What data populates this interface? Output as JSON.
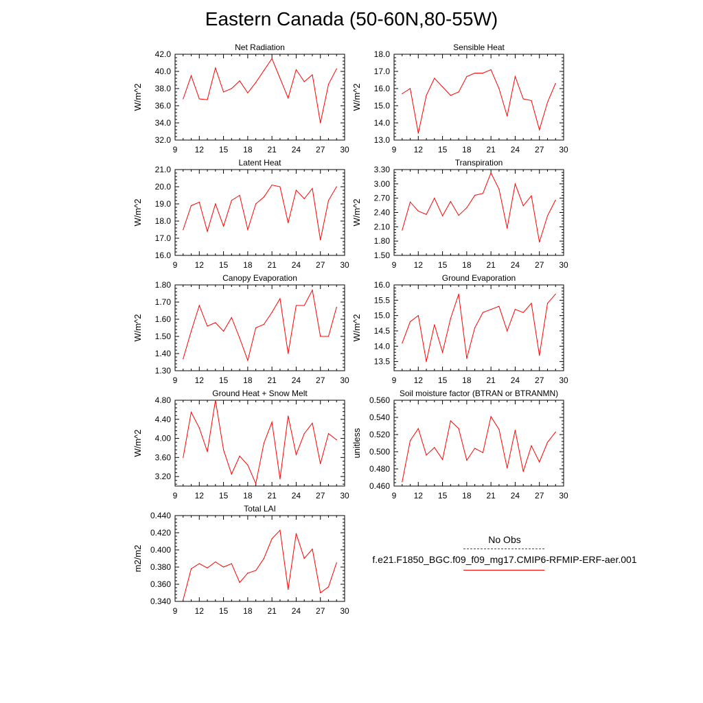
{
  "title": "Eastern Canada (50-60N,80-55W)",
  "legend": {
    "obs_label": "No Obs",
    "obs_color": "#3a3ab8",
    "run_label": "f.e21.F1850_BGC.f09_f09_mg17.CMIP6-RFMIP-ERF-aer.001",
    "run_color": "#ff0000"
  },
  "chart_data": [
    {
      "type": "line",
      "title": "Net Radiation",
      "ylabel": "W/m^2",
      "xlim": [
        9,
        30
      ],
      "xticks": [
        "9",
        "12",
        "15",
        "18",
        "21",
        "24",
        "27",
        "30"
      ],
      "ylim": [
        32.0,
        42.0
      ],
      "yticks": [
        "32.0",
        "34.0",
        "36.0",
        "38.0",
        "40.0",
        "42.0"
      ],
      "series": [
        {
          "x": [
            10,
            11,
            12,
            13,
            14,
            15,
            16,
            17,
            18,
            19,
            20,
            21,
            22,
            23,
            24,
            25,
            26,
            27,
            28,
            29
          ],
          "values": [
            36.8,
            39.5,
            36.8,
            36.7,
            40.4,
            37.6,
            38.0,
            38.9,
            37.5,
            38.7,
            40.1,
            41.5,
            39.2,
            36.9,
            40.2,
            38.8,
            39.6,
            34.0,
            38.5,
            40.3
          ]
        }
      ]
    },
    {
      "type": "line",
      "title": "Sensible Heat",
      "ylabel": "W/m^2",
      "xlim": [
        9,
        30
      ],
      "xticks": [
        "9",
        "12",
        "15",
        "18",
        "21",
        "24",
        "27",
        "30"
      ],
      "ylim": [
        13.0,
        18.0
      ],
      "yticks": [
        "13.0",
        "14.0",
        "15.0",
        "16.0",
        "17.0",
        "18.0"
      ],
      "series": [
        {
          "x": [
            10,
            11,
            12,
            13,
            14,
            15,
            16,
            17,
            18,
            19,
            20,
            21,
            22,
            23,
            24,
            25,
            26,
            27,
            28,
            29
          ],
          "values": [
            15.7,
            16.0,
            13.4,
            15.6,
            16.6,
            16.1,
            15.6,
            15.8,
            16.7,
            16.9,
            16.9,
            17.1,
            16.0,
            14.4,
            16.7,
            15.4,
            15.3,
            13.6,
            15.2,
            16.3
          ]
        }
      ]
    },
    {
      "type": "line",
      "title": "Latent Heat",
      "ylabel": "W/m^2",
      "xlim": [
        9,
        30
      ],
      "xticks": [
        "9",
        "12",
        "15",
        "18",
        "21",
        "24",
        "27",
        "30"
      ],
      "ylim": [
        16.0,
        21.0
      ],
      "yticks": [
        "16.0",
        "17.0",
        "18.0",
        "19.0",
        "20.0",
        "21.0"
      ],
      "series": [
        {
          "x": [
            10,
            11,
            12,
            13,
            14,
            15,
            16,
            17,
            18,
            19,
            20,
            21,
            22,
            23,
            24,
            25,
            26,
            27,
            28,
            29
          ],
          "values": [
            17.5,
            18.9,
            19.1,
            17.4,
            19.0,
            17.7,
            19.2,
            19.5,
            17.5,
            19.0,
            19.4,
            20.1,
            20.0,
            17.9,
            19.8,
            19.3,
            19.9,
            16.9,
            19.2,
            20.0
          ]
        }
      ]
    },
    {
      "type": "line",
      "title": "Transpiration",
      "ylabel": "W/m^2",
      "xlim": [
        9,
        30
      ],
      "xticks": [
        "9",
        "12",
        "15",
        "18",
        "21",
        "24",
        "27",
        "30"
      ],
      "ylim": [
        1.5,
        3.3
      ],
      "yticks": [
        "1.50",
        "1.80",
        "2.10",
        "2.40",
        "2.70",
        "3.00",
        "3.30"
      ],
      "series": [
        {
          "x": [
            10,
            11,
            12,
            13,
            14,
            15,
            16,
            17,
            18,
            19,
            20,
            21,
            22,
            23,
            24,
            25,
            26,
            27,
            28,
            29
          ],
          "values": [
            2.03,
            2.62,
            2.43,
            2.36,
            2.7,
            2.33,
            2.63,
            2.34,
            2.5,
            2.76,
            2.8,
            3.23,
            2.89,
            2.07,
            3.0,
            2.54,
            2.75,
            1.78,
            2.33,
            2.66
          ]
        }
      ]
    },
    {
      "type": "line",
      "title": "Canopy Evaporation",
      "ylabel": "W/m^2",
      "xlim": [
        9,
        30
      ],
      "xticks": [
        "9",
        "12",
        "15",
        "18",
        "21",
        "24",
        "27",
        "30"
      ],
      "ylim": [
        1.3,
        1.8
      ],
      "yticks": [
        "1.30",
        "1.40",
        "1.50",
        "1.60",
        "1.70",
        "1.80"
      ],
      "series": [
        {
          "x": [
            10,
            11,
            12,
            13,
            14,
            15,
            16,
            17,
            18,
            19,
            20,
            21,
            22,
            23,
            24,
            25,
            26,
            27,
            28,
            29
          ],
          "values": [
            1.37,
            1.53,
            1.68,
            1.56,
            1.58,
            1.53,
            1.61,
            1.49,
            1.36,
            1.55,
            1.57,
            1.64,
            1.72,
            1.4,
            1.68,
            1.68,
            1.77,
            1.5,
            1.5,
            1.67
          ]
        }
      ]
    },
    {
      "type": "line",
      "title": "Ground Evaporation",
      "ylabel": "W/m^2",
      "xlim": [
        9,
        30
      ],
      "xticks": [
        "9",
        "12",
        "15",
        "18",
        "21",
        "24",
        "27",
        "30"
      ],
      "ylim": [
        13.2,
        16.0
      ],
      "yticks": [
        "13.5",
        "14.0",
        "14.5",
        "15.0",
        "15.5",
        "16.0"
      ],
      "series": [
        {
          "x": [
            10,
            11,
            12,
            13,
            14,
            15,
            16,
            17,
            18,
            19,
            20,
            21,
            22,
            23,
            24,
            25,
            26,
            27,
            28,
            29
          ],
          "values": [
            14.1,
            14.8,
            15.0,
            13.5,
            14.7,
            13.8,
            14.9,
            15.7,
            13.6,
            14.6,
            15.1,
            15.2,
            15.3,
            14.5,
            15.2,
            15.1,
            15.4,
            13.7,
            15.4,
            15.7
          ]
        }
      ]
    },
    {
      "type": "line",
      "title": "Ground Heat + Snow Melt",
      "ylabel": "W/m^2",
      "xlim": [
        9,
        30
      ],
      "xticks": [
        "9",
        "12",
        "15",
        "18",
        "21",
        "24",
        "27",
        "30"
      ],
      "ylim": [
        3.0,
        4.8
      ],
      "yticks": [
        "3.20",
        "3.60",
        "4.00",
        "4.40",
        "4.80"
      ],
      "series": [
        {
          "x": [
            10,
            11,
            12,
            13,
            14,
            15,
            16,
            17,
            18,
            19,
            20,
            21,
            22,
            23,
            24,
            25,
            26,
            27,
            28,
            29
          ],
          "values": [
            3.6,
            4.55,
            4.22,
            3.72,
            4.8,
            3.76,
            3.25,
            3.63,
            3.44,
            3.05,
            3.9,
            4.34,
            3.15,
            4.47,
            3.66,
            4.1,
            4.32,
            3.47,
            4.1,
            3.97
          ]
        }
      ]
    },
    {
      "type": "line",
      "title": "Soil moisture factor (BTRAN or BTRANMN)",
      "ylabel": "unitless",
      "xlim": [
        9,
        30
      ],
      "xticks": [
        "9",
        "12",
        "15",
        "18",
        "21",
        "24",
        "27",
        "30"
      ],
      "ylim": [
        0.46,
        0.56
      ],
      "yticks": [
        "0.460",
        "0.480",
        "0.500",
        "0.520",
        "0.540",
        "0.560"
      ],
      "series": [
        {
          "x": [
            10,
            11,
            12,
            13,
            14,
            15,
            16,
            17,
            18,
            19,
            20,
            21,
            22,
            23,
            24,
            25,
            26,
            27,
            28,
            29
          ],
          "values": [
            0.465,
            0.513,
            0.527,
            0.496,
            0.505,
            0.491,
            0.536,
            0.527,
            0.49,
            0.504,
            0.499,
            0.541,
            0.526,
            0.481,
            0.525,
            0.477,
            0.507,
            0.488,
            0.511,
            0.523
          ]
        }
      ]
    },
    {
      "type": "line",
      "title": "Total LAI",
      "ylabel": "m2/m2",
      "xlim": [
        9,
        30
      ],
      "xticks": [
        "9",
        "12",
        "15",
        "18",
        "21",
        "24",
        "27",
        "30"
      ],
      "ylim": [
        0.34,
        0.44
      ],
      "yticks": [
        "0.340",
        "0.360",
        "0.380",
        "0.400",
        "0.420",
        "0.440"
      ],
      "series": [
        {
          "x": [
            10,
            11,
            12,
            13,
            14,
            15,
            16,
            17,
            18,
            19,
            20,
            21,
            22,
            23,
            24,
            25,
            26,
            27,
            28,
            29
          ],
          "values": [
            0.342,
            0.378,
            0.384,
            0.379,
            0.386,
            0.38,
            0.384,
            0.362,
            0.373,
            0.376,
            0.39,
            0.413,
            0.423,
            0.354,
            0.419,
            0.39,
            0.401,
            0.35,
            0.357,
            0.385
          ]
        }
      ]
    }
  ]
}
